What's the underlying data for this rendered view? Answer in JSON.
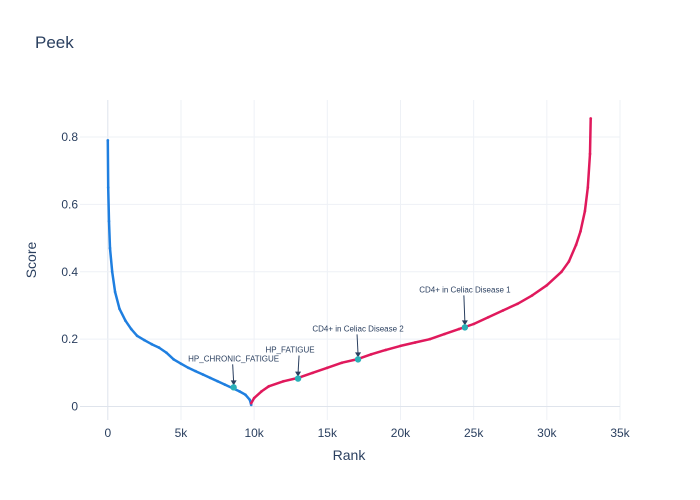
{
  "chart_data": {
    "type": "scatter",
    "title": "Peek",
    "xlabel": "Rank",
    "ylabel": "Score",
    "xlim": [
      -1900,
      35000
    ],
    "ylim": [
      -0.04,
      0.91
    ],
    "xticks": [
      0,
      5000,
      10000,
      15000,
      20000,
      25000,
      30000,
      35000
    ],
    "xtick_labels": [
      "0",
      "5k",
      "10k",
      "15k",
      "20k",
      "25k",
      "30k",
      "35k"
    ],
    "yticks": [
      0,
      0.2,
      0.4,
      0.6,
      0.8
    ],
    "ytick_labels": [
      "0",
      "0.2",
      "0.4",
      "0.6",
      "0.8"
    ],
    "grid": true,
    "series": [
      {
        "color": "#1f7fe0",
        "x": [
          0,
          30,
          80,
          150,
          300,
          500,
          800,
          1200,
          1600,
          2000,
          2500,
          3000,
          3500,
          4000,
          4500,
          5000,
          5500,
          6000,
          6500,
          7000,
          7500,
          8000,
          8500,
          9000,
          9400,
          9700,
          9800
        ],
        "y": [
          0.79,
          0.65,
          0.55,
          0.47,
          0.4,
          0.34,
          0.29,
          0.255,
          0.23,
          0.21,
          0.197,
          0.185,
          0.175,
          0.16,
          0.14,
          0.127,
          0.115,
          0.105,
          0.095,
          0.085,
          0.075,
          0.065,
          0.055,
          0.045,
          0.035,
          0.02,
          0.005
        ]
      },
      {
        "color": "#e0195c",
        "x": [
          9800,
          10000,
          10500,
          11000,
          12000,
          13000,
          14000,
          15000,
          16000,
          17000,
          18000,
          19000,
          20000,
          21000,
          22000,
          23000,
          24000,
          25000,
          26000,
          27000,
          28000,
          29000,
          30000,
          31000,
          31500,
          32000,
          32300,
          32600,
          32800,
          32950,
          33000
        ],
        "y": [
          0.01,
          0.025,
          0.045,
          0.06,
          0.075,
          0.085,
          0.1,
          0.115,
          0.13,
          0.14,
          0.155,
          0.168,
          0.18,
          0.19,
          0.2,
          0.215,
          0.23,
          0.245,
          0.265,
          0.285,
          0.305,
          0.33,
          0.36,
          0.4,
          0.43,
          0.48,
          0.52,
          0.58,
          0.65,
          0.75,
          0.855
        ]
      }
    ],
    "highlights": [
      {
        "label": "HP_CHRONIC_FATIGUE",
        "x": 8600,
        "y": 0.057
      },
      {
        "label": "HP_FATIGUE",
        "x": 13000,
        "y": 0.083
      },
      {
        "label": "CD4+ in Celiac Disease 2",
        "x": 17100,
        "y": 0.14
      },
      {
        "label": "CD4+ in Celiac Disease 1",
        "x": 24400,
        "y": 0.235
      }
    ]
  }
}
